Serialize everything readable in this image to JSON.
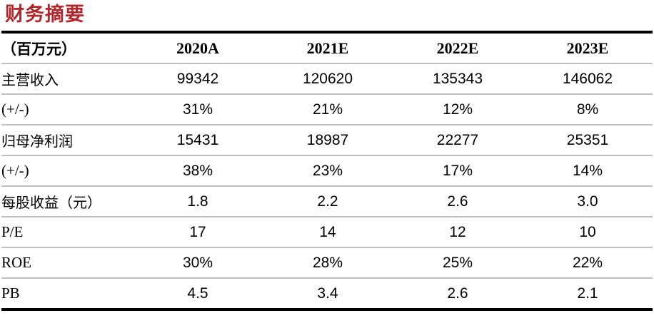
{
  "title": "财务摘要",
  "title_color": "#b3262b",
  "table": {
    "unit_header": "（百万元）",
    "columns": [
      "2020A",
      "2021E",
      "2022E",
      "2023E"
    ],
    "rows": [
      {
        "label": "主营收入",
        "values": [
          "99342",
          "120620",
          "135343",
          "146062"
        ]
      },
      {
        "label": "(+/-)",
        "values": [
          "31%",
          "21%",
          "12%",
          "8%"
        ]
      },
      {
        "label": "归母净利润",
        "values": [
          "15431",
          "18987",
          "22277",
          "25351"
        ]
      },
      {
        "label": "(+/-)",
        "values": [
          "38%",
          "23%",
          "17%",
          "14%"
        ]
      },
      {
        "label": "每股收益（元）",
        "values": [
          "1.8",
          "2.2",
          "2.6",
          "3.0"
        ]
      },
      {
        "label": "P/E",
        "values": [
          "17",
          "14",
          "12",
          "10"
        ]
      },
      {
        "label": "ROE",
        "values": [
          "30%",
          "28%",
          "25%",
          "22%"
        ]
      },
      {
        "label": "PB",
        "values": [
          "4.5",
          "3.4",
          "2.6",
          "2.1"
        ]
      }
    ]
  }
}
